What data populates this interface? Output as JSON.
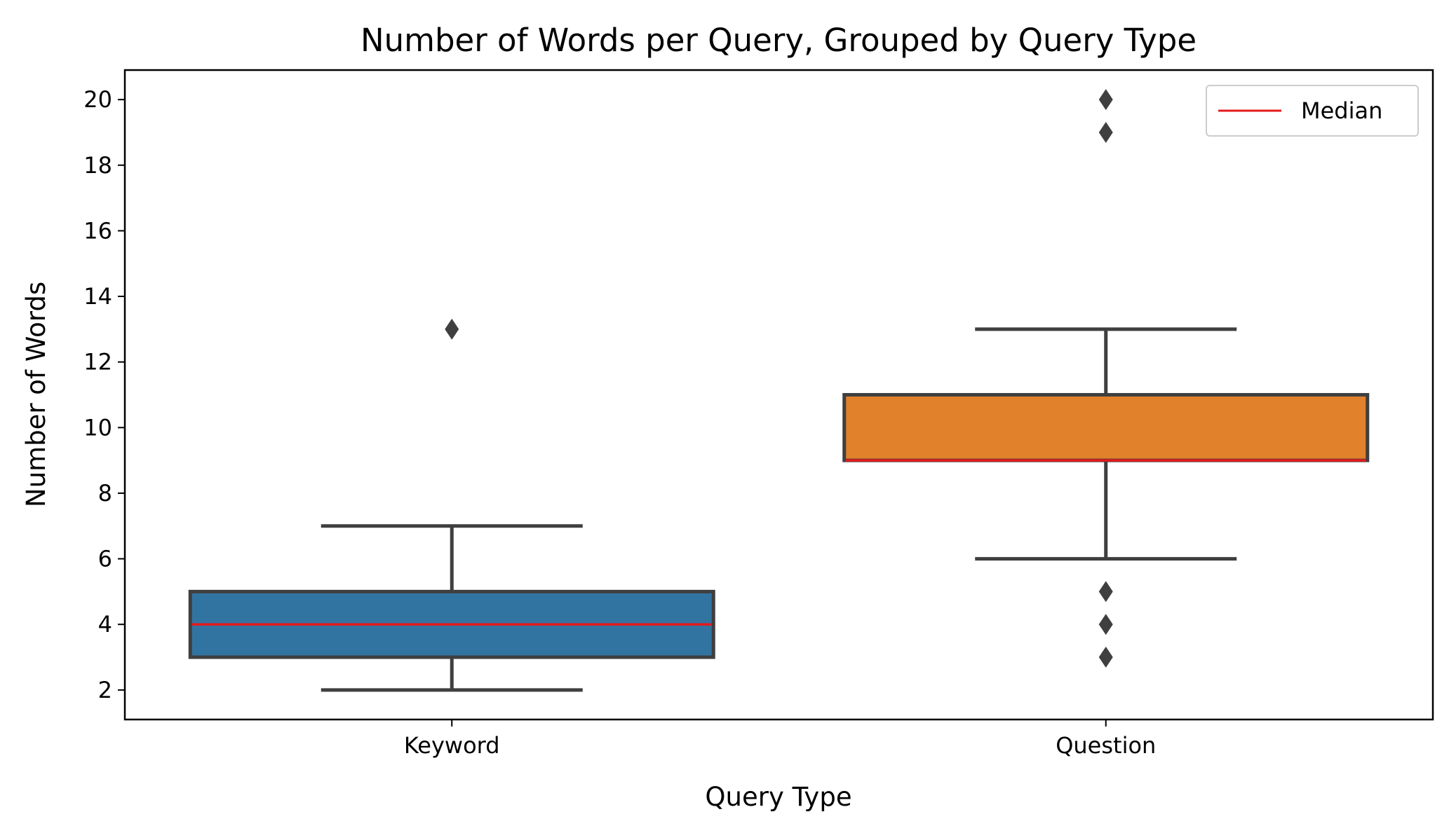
{
  "chart_data": {
    "type": "box",
    "title": "Number of Words per Query, Grouped by Query Type",
    "xlabel": "Query Type",
    "ylabel": "Number of Words",
    "categories": [
      "Keyword",
      "Question"
    ],
    "ylim": [
      1.1,
      20.9
    ],
    "yticks": [
      2,
      4,
      6,
      8,
      10,
      12,
      14,
      16,
      18,
      20
    ],
    "boxes": [
      {
        "category": "Keyword",
        "whisker_low": 2,
        "q1": 3,
        "median": 4,
        "q3": 5,
        "whisker_high": 7,
        "outliers": [
          13
        ],
        "color": "#3274a1"
      },
      {
        "category": "Question",
        "whisker_low": 6,
        "q1": 9,
        "median": 9,
        "q3": 11,
        "whisker_high": 13,
        "outliers": [
          20,
          19,
          5,
          4,
          3
        ],
        "color": "#e1812c"
      }
    ],
    "median_color": "#e41a1c",
    "line_color": "#3f3f3f",
    "grid": false,
    "legend": {
      "position": "top-right",
      "entries": [
        {
          "label": "Median",
          "color": "#e41a1c"
        }
      ]
    }
  }
}
